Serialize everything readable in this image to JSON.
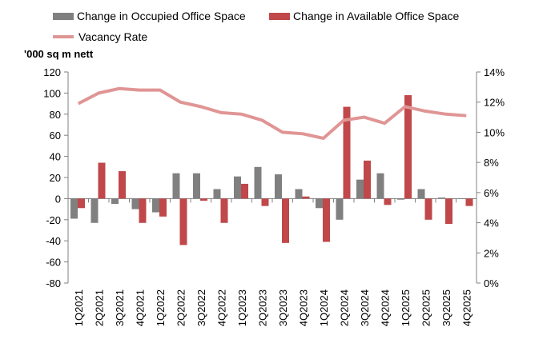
{
  "chart_data": {
    "type": "bar",
    "ylabel": "'000 sq m nett",
    "ylim": [
      -80,
      120
    ],
    "y_ticks": [
      120,
      100,
      80,
      60,
      40,
      20,
      0,
      -20,
      -40,
      -60,
      -80
    ],
    "y2lim": [
      0,
      14
    ],
    "y2_ticks": [
      "14%",
      "12%",
      "10%",
      "8%",
      "6%",
      "4%",
      "2%",
      "0%"
    ],
    "grid": false,
    "legend_placement": "top",
    "categories": [
      "1Q2021",
      "2Q2021",
      "3Q2021",
      "4Q2021",
      "1Q2022",
      "2Q2022",
      "3Q2022",
      "4Q2022",
      "1Q2023",
      "2Q2023",
      "3Q2023",
      "4Q2023",
      "1Q2024",
      "2Q2024",
      "3Q2024",
      "4Q2024",
      "1Q2025",
      "2Q2025",
      "3Q2025",
      "4Q2025"
    ],
    "series": [
      {
        "name": "Change in Occupied Office Space",
        "type": "bar",
        "axis": "left",
        "color": "#808080",
        "values": [
          -19,
          -23,
          -5,
          -10,
          -13,
          24,
          24,
          9,
          21,
          30,
          23,
          9,
          -9,
          -20,
          18,
          24,
          -1,
          9,
          1,
          0
        ]
      },
      {
        "name": "Change in Available Office Space",
        "type": "bar",
        "axis": "left",
        "color": "#c0474a",
        "values": [
          -9,
          34,
          26,
          -23,
          -17,
          -44,
          -2,
          -23,
          14,
          -7,
          -42,
          2,
          -41,
          87,
          36,
          -6,
          98,
          -20,
          -24,
          -7
        ]
      },
      {
        "name": "Vacancy Rate",
        "type": "line",
        "axis": "right",
        "unit": "%",
        "color": "#e09595",
        "values": [
          11.9,
          12.6,
          12.9,
          12.8,
          12.8,
          12.0,
          11.7,
          11.3,
          11.2,
          10.8,
          10.0,
          9.9,
          9.6,
          10.8,
          11.0,
          10.6,
          11.7,
          11.4,
          11.2,
          11.1
        ]
      }
    ]
  }
}
